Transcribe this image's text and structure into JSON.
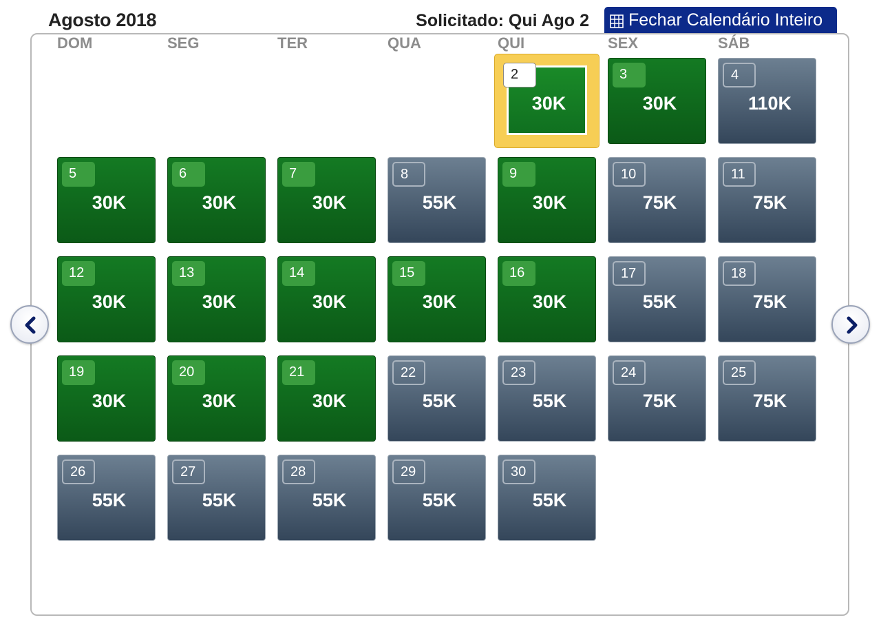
{
  "header": {
    "month_title": "Agosto 2018",
    "requested_label": "Solicitado: Qui Ago 2",
    "close_button_label": "Fechar Calendário Inteiro"
  },
  "weekdays": [
    "DOM",
    "SEG",
    "TER",
    "QUA",
    "QUI",
    "SEX",
    "SÁB"
  ],
  "days": [
    {
      "day": "2",
      "price": "30K",
      "status": "green",
      "selected": true
    },
    {
      "day": "3",
      "price": "30K",
      "status": "green"
    },
    {
      "day": "4",
      "price": "110K",
      "status": "gray"
    },
    {
      "day": "5",
      "price": "30K",
      "status": "green"
    },
    {
      "day": "6",
      "price": "30K",
      "status": "green"
    },
    {
      "day": "7",
      "price": "30K",
      "status": "green"
    },
    {
      "day": "8",
      "price": "55K",
      "status": "gray"
    },
    {
      "day": "9",
      "price": "30K",
      "status": "green"
    },
    {
      "day": "10",
      "price": "75K",
      "status": "gray"
    },
    {
      "day": "11",
      "price": "75K",
      "status": "gray"
    },
    {
      "day": "12",
      "price": "30K",
      "status": "green"
    },
    {
      "day": "13",
      "price": "30K",
      "status": "green"
    },
    {
      "day": "14",
      "price": "30K",
      "status": "green"
    },
    {
      "day": "15",
      "price": "30K",
      "status": "green"
    },
    {
      "day": "16",
      "price": "30K",
      "status": "green"
    },
    {
      "day": "17",
      "price": "55K",
      "status": "gray"
    },
    {
      "day": "18",
      "price": "75K",
      "status": "gray"
    },
    {
      "day": "19",
      "price": "30K",
      "status": "green"
    },
    {
      "day": "20",
      "price": "30K",
      "status": "green"
    },
    {
      "day": "21",
      "price": "30K",
      "status": "green"
    },
    {
      "day": "22",
      "price": "55K",
      "status": "gray"
    },
    {
      "day": "23",
      "price": "55K",
      "status": "gray"
    },
    {
      "day": "24",
      "price": "75K",
      "status": "gray"
    },
    {
      "day": "25",
      "price": "75K",
      "status": "gray"
    },
    {
      "day": "26",
      "price": "55K",
      "status": "gray"
    },
    {
      "day": "27",
      "price": "55K",
      "status": "gray"
    },
    {
      "day": "28",
      "price": "55K",
      "status": "gray"
    },
    {
      "day": "29",
      "price": "55K",
      "status": "gray"
    },
    {
      "day": "30",
      "price": "55K",
      "status": "gray"
    }
  ],
  "colors": {
    "available_green": "#0f6a1c",
    "unavailable_gray": "#4b5d70",
    "selected_highlight": "#f7ce55",
    "button_blue": "#0c2a8a"
  },
  "icons": {
    "close_button_icon": "calendar-grid-icon",
    "prev": "chevron-left-icon",
    "next": "chevron-right-icon"
  }
}
